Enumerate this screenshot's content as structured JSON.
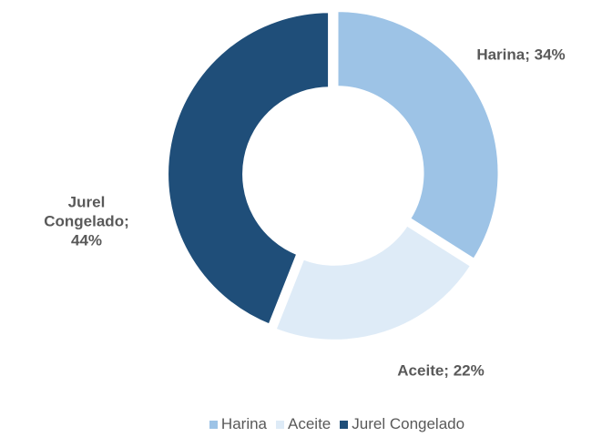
{
  "chart_data": {
    "type": "donut",
    "categories": [
      "Harina",
      "Aceite",
      "Jurel Congelado"
    ],
    "values": [
      34,
      22,
      44
    ],
    "value_labels": [
      "Harina; 34%",
      "Aceite; 22%",
      "Jurel Congelado; 44%"
    ],
    "colors": [
      "#9dc3e6",
      "#deebf7",
      "#1f4e79"
    ],
    "legend": "bottom"
  }
}
